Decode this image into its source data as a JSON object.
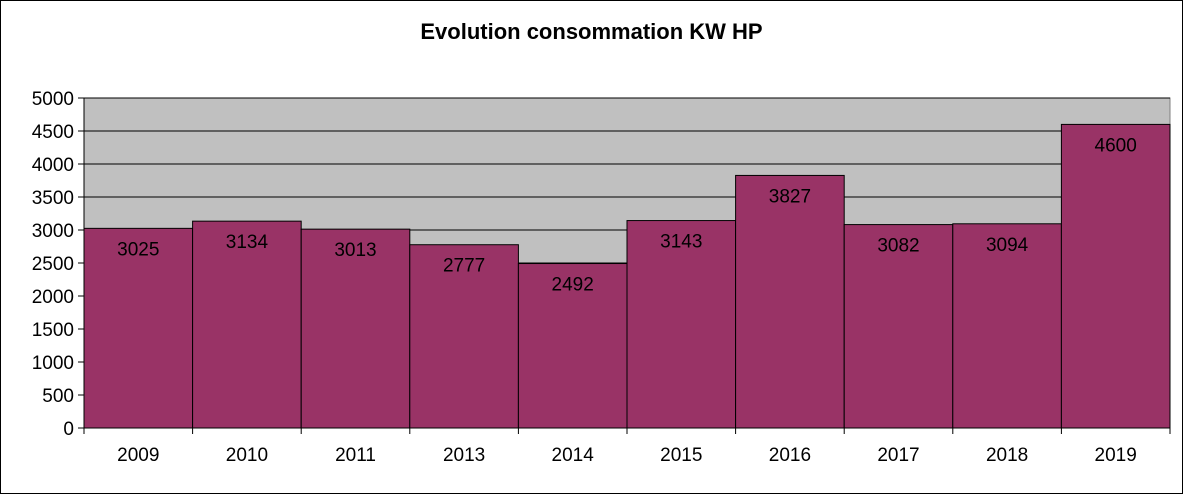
{
  "chart_data": {
    "type": "bar",
    "title": "Evolution consommation KW HP",
    "categories": [
      "2009",
      "2010",
      "2011",
      "2013",
      "2014",
      "2015",
      "2016",
      "2017",
      "2018",
      "2019"
    ],
    "values": [
      3025,
      3134,
      3013,
      2777,
      2492,
      3143,
      3827,
      3082,
      3094,
      4600
    ],
    "ylim": [
      0,
      5000
    ],
    "yticks": [
      0,
      500,
      1000,
      1500,
      2000,
      2500,
      3000,
      3500,
      4000,
      4500,
      5000
    ],
    "xlabel": "",
    "ylabel": "",
    "grid": true,
    "legend": "none",
    "bar_color": "#993366",
    "plot_background": "#c0c0c0"
  }
}
